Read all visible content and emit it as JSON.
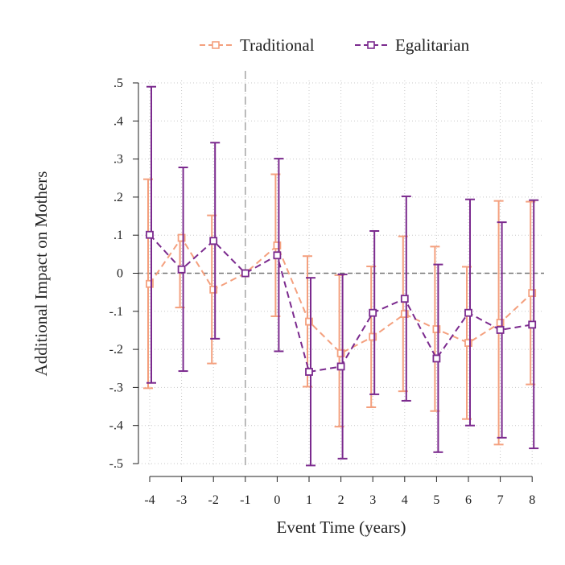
{
  "chart_data": {
    "type": "line",
    "xlabel": "Event Time (years)",
    "ylabel": "Additional Impact on Mothers",
    "x": [
      -4,
      -3,
      -2,
      -1,
      0,
      1,
      2,
      3,
      4,
      5,
      6,
      7,
      8
    ],
    "x_tick_labels": [
      "-4",
      "-3",
      "-2",
      "-1",
      "0",
      "1",
      "2",
      "3",
      "4",
      "5",
      "6",
      "7",
      "8"
    ],
    "ylim": [
      -0.5,
      0.5
    ],
    "y_ticks": [
      0.5,
      0.4,
      0.3,
      0.2,
      0.1,
      0,
      -0.1,
      -0.2,
      -0.3,
      -0.4,
      -0.5
    ],
    "y_tick_labels": [
      ".5",
      ".4",
      ".3",
      ".2",
      ".1",
      "0",
      "-.1",
      "-.2",
      "-.3",
      "-.4",
      "-.5"
    ],
    "reference_lines": {
      "vertical_x": -1,
      "horizontal_y": 0
    },
    "grid": true,
    "legend_position": "top",
    "series": [
      {
        "name": "Traditional",
        "color": "#F4A07E",
        "line_style": "dashed",
        "marker": "hollow-square",
        "values": [
          -0.028,
          0.093,
          -0.043,
          0.0,
          0.073,
          -0.127,
          -0.21,
          -0.167,
          -0.107,
          -0.147,
          -0.183,
          -0.13,
          -0.052
        ],
        "ci_low": [
          -0.302,
          -0.09,
          -0.237,
          null,
          -0.113,
          -0.298,
          -0.403,
          -0.352,
          -0.31,
          -0.362,
          -0.383,
          -0.45,
          -0.292
        ],
        "ci_high": [
          0.247,
          null,
          0.152,
          null,
          0.26,
          0.045,
          -0.005,
          0.018,
          0.097,
          0.07,
          0.017,
          0.19,
          0.188
        ]
      },
      {
        "name": "Egalitarian",
        "color": "#7B2A8E",
        "line_style": "dashed",
        "marker": "hollow-square",
        "values": [
          0.101,
          0.01,
          0.085,
          0.0,
          0.047,
          -0.259,
          -0.245,
          -0.104,
          -0.067,
          -0.224,
          -0.104,
          -0.149,
          -0.135
        ],
        "ci_low": [
          -0.288,
          -0.257,
          -0.172,
          null,
          -0.205,
          -0.505,
          -0.487,
          -0.318,
          -0.335,
          -0.47,
          -0.4,
          -0.432,
          -0.46
        ],
        "ci_high": [
          0.49,
          0.278,
          0.343,
          null,
          0.301,
          -0.012,
          -0.003,
          0.111,
          0.202,
          0.023,
          0.194,
          0.134,
          0.192
        ]
      }
    ]
  }
}
